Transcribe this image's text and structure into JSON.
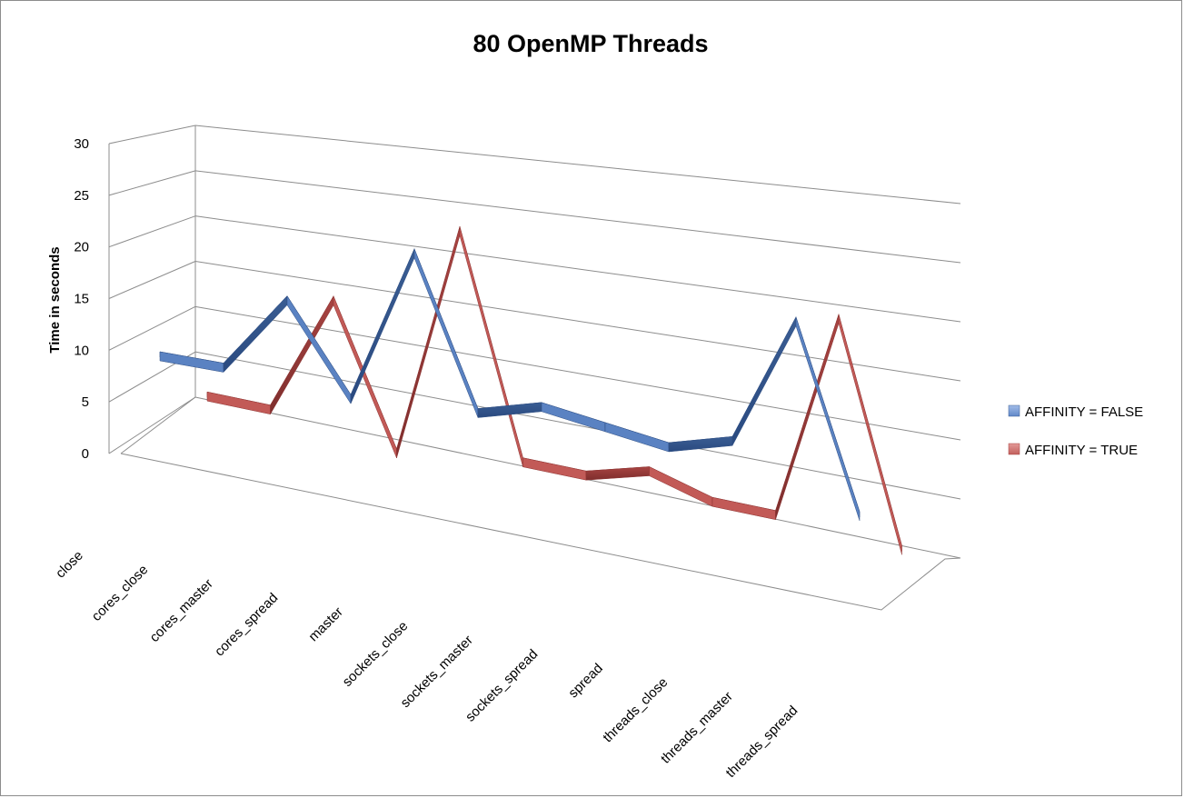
{
  "chart_data": {
    "type": "line",
    "title": "80 OpenMP Threads",
    "ylabel": "Time in seconds",
    "xlabel": "",
    "ylim": [
      0,
      30
    ],
    "yticks": [
      "0",
      "5",
      "10",
      "15",
      "20",
      "25",
      "30"
    ],
    "categories": [
      "close",
      "cores_close",
      "cores_master",
      "cores_spread",
      "master",
      "sockets_close",
      "sockets_master",
      "sockets_spread",
      "spread",
      "threads_close",
      "threads_master",
      "threads_spread"
    ],
    "series": [
      {
        "name": "AFFINITY = FALSE",
        "color": "#4f81bd",
        "values": [
          5,
          5,
          14,
          4,
          22,
          5,
          7,
          6,
          5,
          7,
          22,
          1
        ]
      },
      {
        "name": "AFFINITY = TRUE",
        "color": "#c0504d",
        "values": [
          3,
          3,
          17,
          1,
          28,
          3,
          3,
          5,
          3,
          3,
          27,
          2
        ]
      }
    ],
    "grid": true,
    "legend_position": "right",
    "style": "3d-ribbon"
  }
}
